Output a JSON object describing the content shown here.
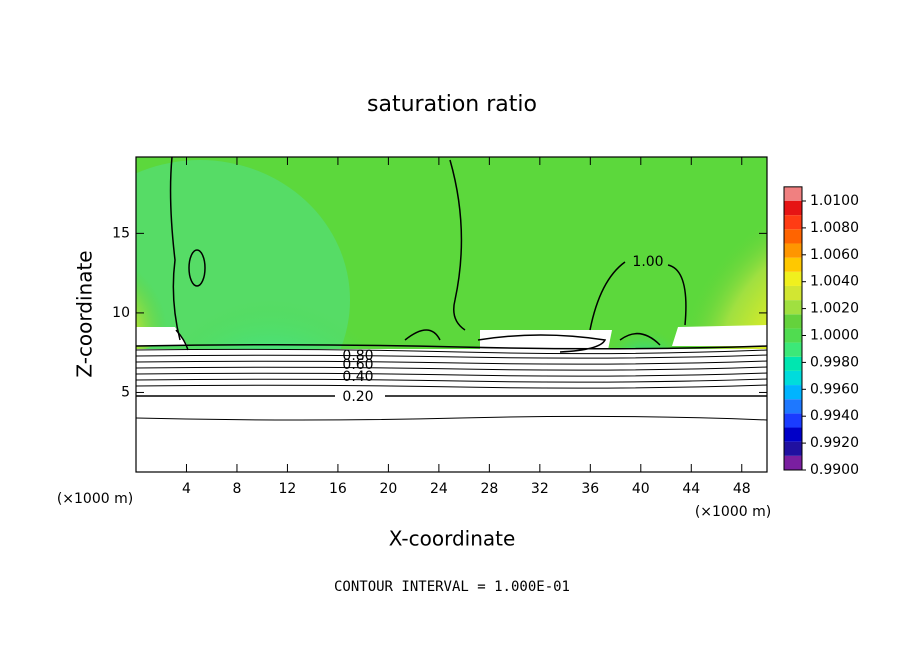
{
  "chart_data": {
    "type": "contour",
    "title": "saturation ratio",
    "x_label": "X-coordinate",
    "y_label": "Z-coordinate",
    "x_unit": "(×1000 m)",
    "footer": "CONTOUR INTERVAL = 1.000E-01",
    "xlim": [
      0,
      50
    ],
    "ylim": [
      0,
      19.8
    ],
    "xticks": [
      4,
      8,
      12,
      16,
      20,
      24,
      28,
      32,
      36,
      40,
      44,
      48
    ],
    "yticks": [
      5,
      10,
      15
    ],
    "contour_labels": [
      {
        "value": 1.0,
        "label": "1.00"
      },
      {
        "value": 0.8,
        "label": "0.80"
      },
      {
        "value": 0.6,
        "label": "0.60"
      },
      {
        "value": 0.4,
        "label": "0.40"
      },
      {
        "value": 0.2,
        "label": "0.20"
      }
    ],
    "colorbar": {
      "lim": [
        0.99,
        1.01
      ],
      "colors": [
        "#7a1fa0",
        "#2010a0",
        "#0000c8",
        "#1a3cff",
        "#1e78ff",
        "#00b4ff",
        "#00dcdc",
        "#00e6b0",
        "#3ce878",
        "#50dc50",
        "#64d23c",
        "#a0e040",
        "#d2e632",
        "#f0f01e",
        "#ffc800",
        "#ff9600",
        "#ff6400",
        "#ff3c14",
        "#e61414",
        "#f08080"
      ],
      "ticks": [
        {
          "value": 0.99,
          "label": "0.9900"
        },
        {
          "value": 0.992,
          "label": "0.9920"
        },
        {
          "value": 0.994,
          "label": "0.9940"
        },
        {
          "value": 0.996,
          "label": "0.9960"
        },
        {
          "value": 0.998,
          "label": "0.9980"
        },
        {
          "value": 1.0,
          "label": "1.0000"
        },
        {
          "value": 1.002,
          "label": "1.0020"
        },
        {
          "value": 1.004,
          "label": "1.0040"
        },
        {
          "value": 1.006,
          "label": "1.0060"
        },
        {
          "value": 1.008,
          "label": "1.0080"
        },
        {
          "value": 1.01,
          "label": "1.0100"
        }
      ]
    }
  }
}
